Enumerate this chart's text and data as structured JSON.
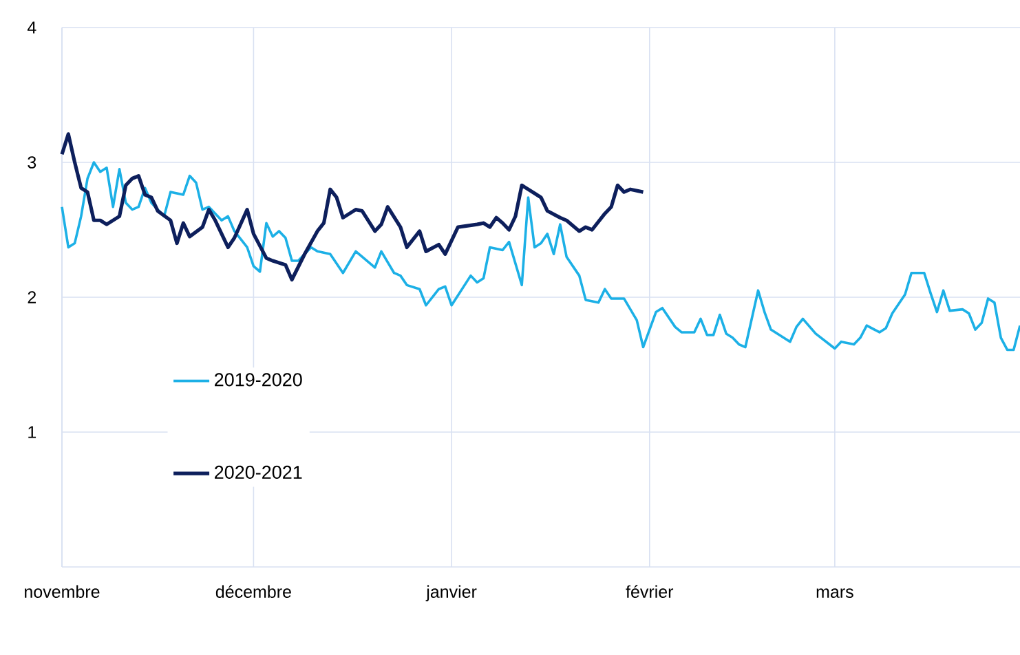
{
  "chart_data": {
    "type": "line",
    "xlim": [
      "2019-11-01",
      "2020-03-30"
    ],
    "xticks": [
      {
        "value": "2019-11-01",
        "label": "novembre"
      },
      {
        "value": "2019-12-01",
        "label": "décembre"
      },
      {
        "value": "2020-01-01",
        "label": "janvier"
      },
      {
        "value": "2020-02-01",
        "label": "février"
      },
      {
        "value": "2020-03-01",
        "label": "mars"
      }
    ],
    "ylim": [
      0,
      4
    ],
    "yticks": [
      1,
      2,
      3,
      4
    ],
    "grid": true,
    "legend": "left",
    "marker": "none",
    "line_style": "solid",
    "series": [
      {
        "name": "2019-2020",
        "color": "#1cb0e6",
        "x": [
          "2019-11-01",
          "2019-11-02",
          "2019-11-03",
          "2019-11-04",
          "2019-11-05",
          "2019-11-06",
          "2019-11-07",
          "2019-11-08",
          "2019-11-09",
          "2019-11-10",
          "2019-11-11",
          "2019-11-12",
          "2019-11-13",
          "2019-11-14",
          "2019-11-15",
          "2019-11-17",
          "2019-11-18",
          "2019-11-20",
          "2019-11-21",
          "2019-11-22",
          "2019-11-23",
          "2019-11-24",
          "2019-11-26",
          "2019-11-27",
          "2019-11-28",
          "2019-11-30",
          "2019-12-01",
          "2019-12-02",
          "2019-12-03",
          "2019-12-04",
          "2019-12-05",
          "2019-12-06",
          "2019-12-07",
          "2019-12-08",
          "2019-12-10",
          "2019-12-11",
          "2019-12-13",
          "2019-12-15",
          "2019-12-17",
          "2019-12-18",
          "2019-12-20",
          "2019-12-21",
          "2019-12-23",
          "2019-12-24",
          "2019-12-25",
          "2019-12-27",
          "2019-12-28",
          "2019-12-30",
          "2019-12-31",
          "2020-01-01",
          "2020-01-04",
          "2020-01-05",
          "2020-01-06",
          "2020-01-07",
          "2020-01-09",
          "2020-01-10",
          "2020-01-12",
          "2020-01-13",
          "2020-01-14",
          "2020-01-15",
          "2020-01-16",
          "2020-01-17",
          "2020-01-18",
          "2020-01-19",
          "2020-01-21",
          "2020-01-22",
          "2020-01-24",
          "2020-01-25",
          "2020-01-26",
          "2020-01-28",
          "2020-01-30",
          "2020-01-31",
          "2020-02-02",
          "2020-02-03",
          "2020-02-05",
          "2020-02-06",
          "2020-02-08",
          "2020-02-09",
          "2020-02-10",
          "2020-02-11",
          "2020-02-12",
          "2020-02-13",
          "2020-02-14",
          "2020-02-15",
          "2020-02-16",
          "2020-02-18",
          "2020-02-19",
          "2020-02-20",
          "2020-02-23",
          "2020-02-24",
          "2020-02-25",
          "2020-02-27",
          "2020-03-01",
          "2020-03-02",
          "2020-03-04",
          "2020-03-05",
          "2020-03-06",
          "2020-03-08",
          "2020-03-09",
          "2020-03-10",
          "2020-03-12",
          "2020-03-13",
          "2020-03-15",
          "2020-03-16",
          "2020-03-17",
          "2020-03-18",
          "2020-03-19",
          "2020-03-21",
          "2020-03-22",
          "2020-03-23",
          "2020-03-24",
          "2020-03-25",
          "2020-03-26",
          "2020-03-27",
          "2020-03-28",
          "2020-03-29",
          "2020-03-30"
        ],
        "values": [
          2.67,
          2.37,
          2.4,
          2.6,
          2.88,
          3.0,
          2.93,
          2.96,
          2.67,
          2.95,
          2.7,
          2.65,
          2.67,
          2.81,
          2.7,
          2.6,
          2.78,
          2.76,
          2.9,
          2.85,
          2.65,
          2.67,
          2.57,
          2.6,
          2.49,
          2.37,
          2.23,
          2.19,
          2.55,
          2.45,
          2.49,
          2.44,
          2.27,
          2.27,
          2.37,
          2.34,
          2.32,
          2.18,
          2.34,
          2.3,
          2.22,
          2.34,
          2.18,
          2.16,
          2.09,
          2.06,
          1.94,
          2.06,
          2.08,
          1.94,
          2.16,
          2.11,
          2.14,
          2.37,
          2.35,
          2.41,
          2.09,
          2.74,
          2.37,
          2.4,
          2.47,
          2.32,
          2.54,
          2.3,
          2.16,
          1.98,
          1.96,
          2.06,
          1.99,
          1.99,
          1.83,
          1.63,
          1.89,
          1.92,
          1.78,
          1.74,
          1.74,
          1.84,
          1.72,
          1.72,
          1.87,
          1.73,
          1.7,
          1.65,
          1.63,
          2.05,
          1.89,
          1.76,
          1.67,
          1.78,
          1.84,
          1.73,
          1.62,
          1.67,
          1.65,
          1.7,
          1.79,
          1.74,
          1.77,
          1.88,
          2.02,
          2.18,
          2.18,
          2.03,
          1.89,
          2.05,
          1.9,
          1.91,
          1.88,
          1.76,
          1.81,
          1.99,
          1.96,
          1.7,
          1.61,
          1.61,
          1.79
        ]
      },
      {
        "name": "2020-2021",
        "color": "#0d1f5c",
        "x": [
          "2019-11-01",
          "2019-11-02",
          "2019-11-03",
          "2019-11-04",
          "2019-11-05",
          "2019-11-06",
          "2019-11-07",
          "2019-11-08",
          "2019-11-10",
          "2019-11-11",
          "2019-11-12",
          "2019-11-13",
          "2019-11-14",
          "2019-11-15",
          "2019-11-16",
          "2019-11-18",
          "2019-11-19",
          "2019-11-20",
          "2019-11-21",
          "2019-11-23",
          "2019-11-24",
          "2019-11-25",
          "2019-11-27",
          "2019-11-28",
          "2019-11-30",
          "2019-12-01",
          "2019-12-03",
          "2019-12-04",
          "2019-12-06",
          "2019-12-07",
          "2019-12-09",
          "2019-12-11",
          "2019-12-12",
          "2019-12-13",
          "2019-12-14",
          "2019-12-15",
          "2019-12-17",
          "2019-12-18",
          "2019-12-20",
          "2019-12-21",
          "2019-12-22",
          "2019-12-24",
          "2019-12-25",
          "2019-12-27",
          "2019-12-28",
          "2019-12-30",
          "2019-12-31",
          "2020-01-02",
          "2020-01-05",
          "2020-01-06",
          "2020-01-07",
          "2020-01-08",
          "2020-01-09",
          "2020-01-10",
          "2020-01-11",
          "2020-01-12",
          "2020-01-14",
          "2020-01-15",
          "2020-01-16",
          "2020-01-18",
          "2020-01-19",
          "2020-01-21",
          "2020-01-22",
          "2020-01-23",
          "2020-01-25",
          "2020-01-26",
          "2020-01-27",
          "2020-01-28",
          "2020-01-29",
          "2020-01-31"
        ],
        "values": [
          3.06,
          3.21,
          3.0,
          2.81,
          2.78,
          2.57,
          2.57,
          2.54,
          2.6,
          2.83,
          2.88,
          2.9,
          2.76,
          2.74,
          2.64,
          2.57,
          2.4,
          2.55,
          2.45,
          2.52,
          2.65,
          2.57,
          2.37,
          2.44,
          2.65,
          2.47,
          2.29,
          2.27,
          2.24,
          2.13,
          2.32,
          2.49,
          2.55,
          2.8,
          2.74,
          2.59,
          2.65,
          2.64,
          2.49,
          2.54,
          2.67,
          2.52,
          2.37,
          2.49,
          2.34,
          2.39,
          2.32,
          2.52,
          2.54,
          2.55,
          2.52,
          2.59,
          2.55,
          2.5,
          2.6,
          2.83,
          2.77,
          2.74,
          2.64,
          2.59,
          2.57,
          2.49,
          2.52,
          2.5,
          2.62,
          2.67,
          2.83,
          2.78,
          2.8,
          2.78
        ]
      }
    ]
  }
}
